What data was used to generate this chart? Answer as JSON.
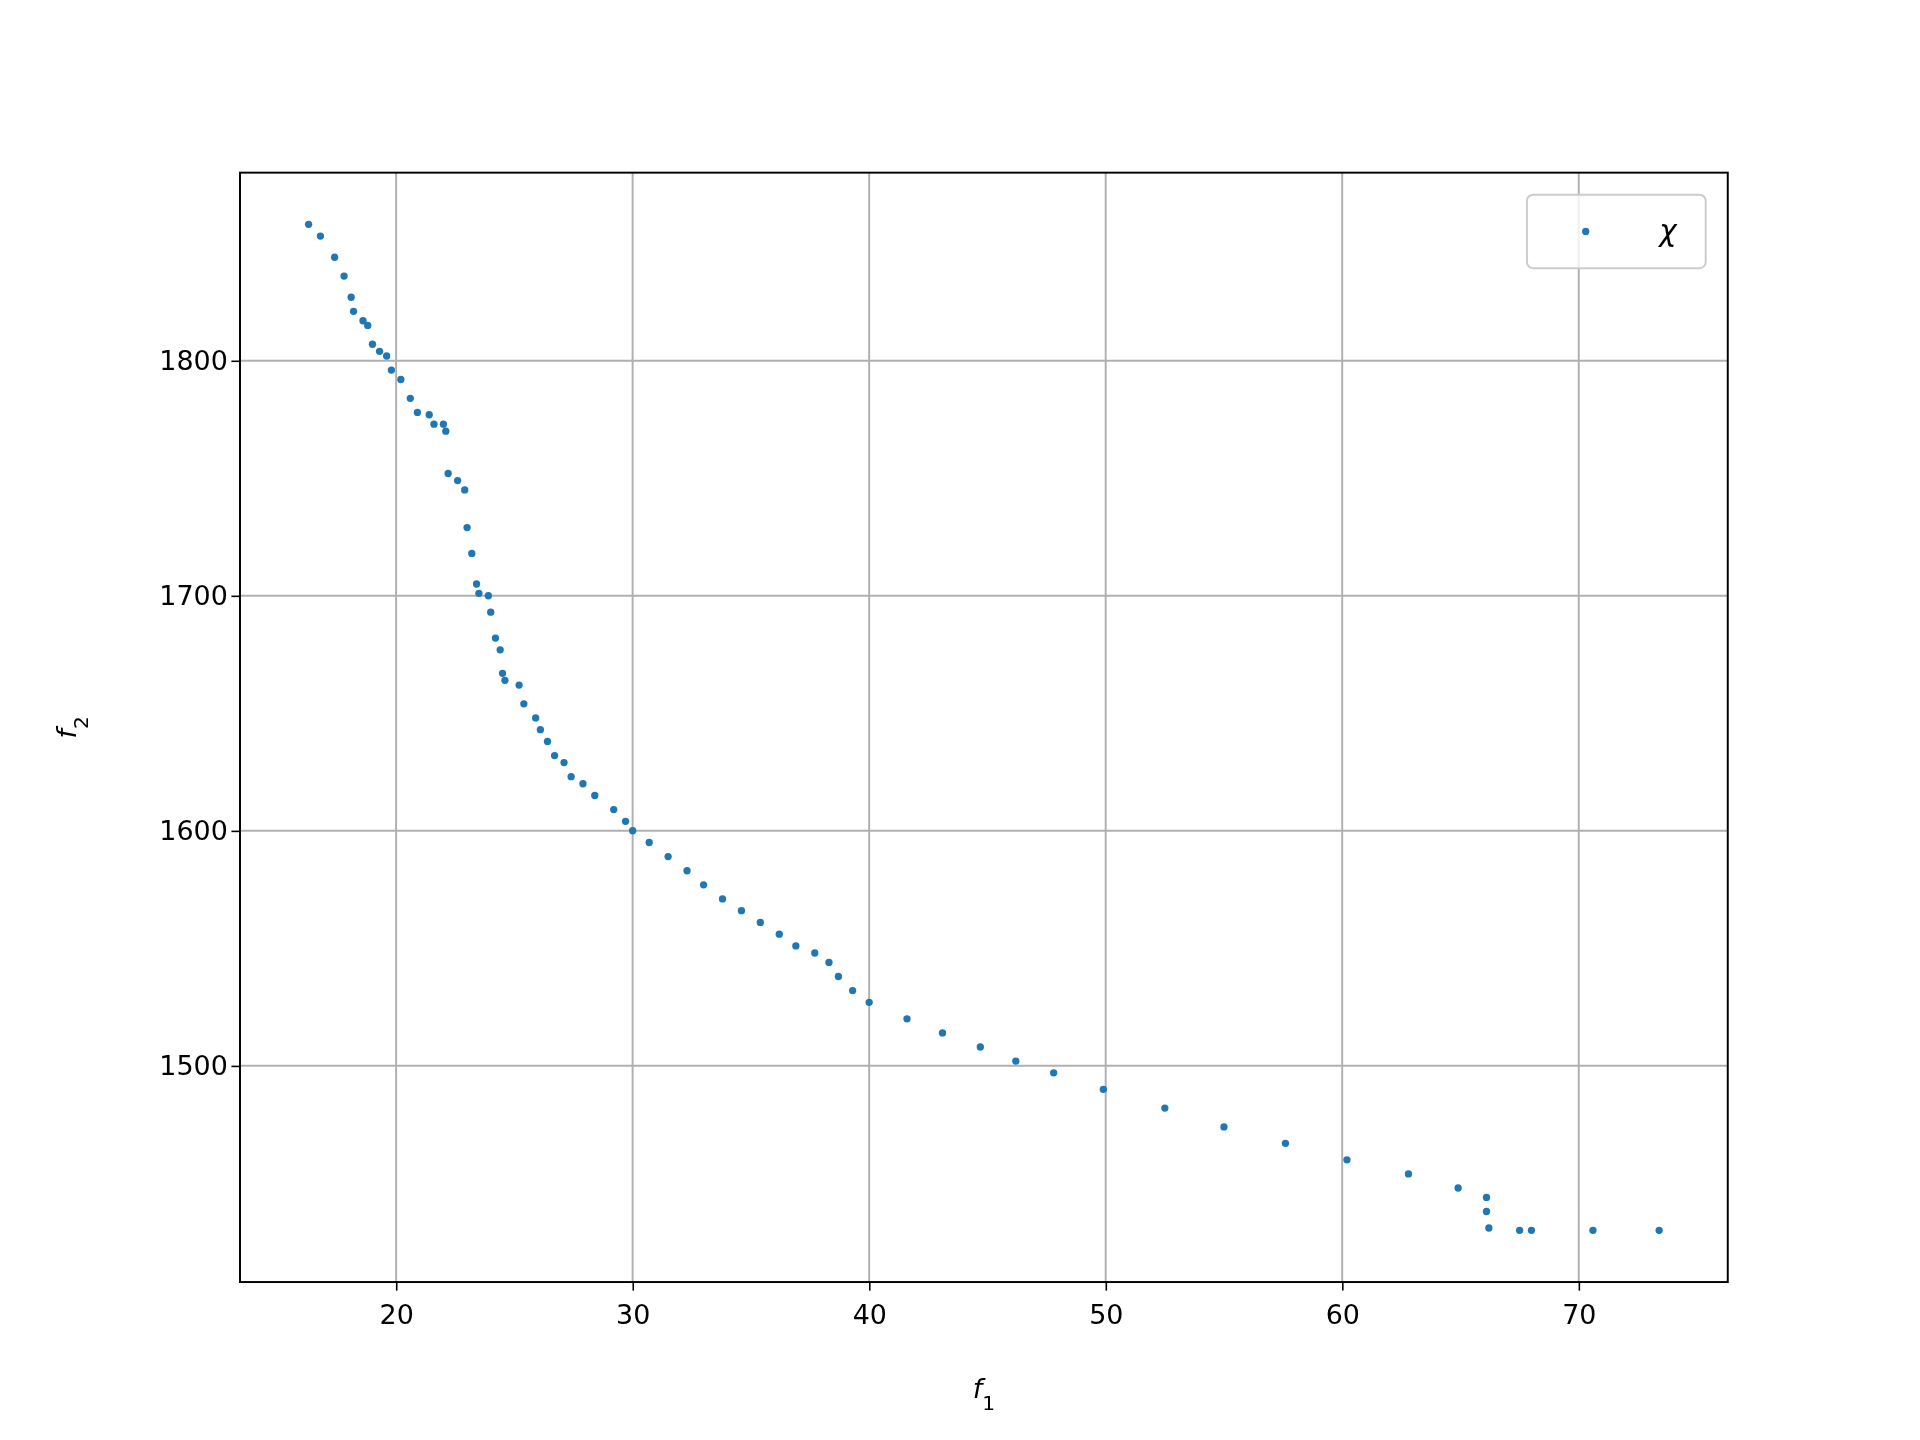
{
  "chart_data": {
    "type": "scatter",
    "xlabel": "f$_{1}$",
    "ylabel": "f$_{2}$",
    "xlim": [
      13.4,
      76.3
    ],
    "ylim": [
      1408,
      1880
    ],
    "xticks": [
      20,
      30,
      40,
      50,
      60,
      70
    ],
    "yticks": [
      1500,
      1600,
      1700,
      1800
    ],
    "grid": true,
    "legend": "top right",
    "marker": "circle",
    "series": [
      {
        "name": "χ",
        "color": "#1f77b4",
        "x": [
          16.3,
          16.8,
          17.4,
          17.8,
          18.1,
          18.2,
          18.6,
          18.8,
          19.0,
          19.3,
          19.6,
          19.8,
          20.2,
          20.6,
          20.9,
          21.4,
          21.6,
          22.0,
          22.1,
          22.2,
          22.6,
          22.9,
          23.0,
          23.2,
          23.4,
          23.5,
          23.9,
          24.0,
          24.2,
          24.4,
          24.5,
          24.6,
          25.2,
          25.4,
          25.9,
          26.1,
          26.4,
          26.7,
          27.1,
          27.4,
          27.9,
          28.4,
          29.2,
          29.7,
          30.0,
          30.7,
          31.5,
          32.3,
          33.0,
          33.8,
          34.6,
          35.4,
          36.2,
          36.9,
          37.7,
          38.3,
          38.7,
          39.3,
          40.0,
          41.6,
          43.1,
          44.7,
          46.2,
          47.8,
          49.9,
          52.5,
          55.0,
          57.6,
          60.2,
          62.8,
          64.9,
          66.1,
          66.1,
          66.2,
          67.5,
          68.0,
          70.6,
          73.4
        ],
        "values": [
          1858,
          1853,
          1844,
          1836,
          1827,
          1821,
          1817,
          1815,
          1807,
          1804,
          1802,
          1796,
          1792,
          1784,
          1778,
          1777,
          1773,
          1773,
          1770,
          1752,
          1749,
          1745,
          1729,
          1718,
          1705,
          1701,
          1700,
          1693,
          1682,
          1677,
          1667,
          1664,
          1662,
          1654,
          1648,
          1643,
          1638,
          1632,
          1629,
          1623,
          1620,
          1615,
          1609,
          1604,
          1600,
          1595,
          1589,
          1583,
          1577,
          1571,
          1566,
          1561,
          1556,
          1551,
          1548,
          1544,
          1538,
          1532,
          1527,
          1520,
          1514,
          1508,
          1502,
          1497,
          1490,
          1482,
          1474,
          1467,
          1460,
          1454,
          1448,
          1444,
          1438,
          1431,
          1430,
          1430,
          1430,
          1430
        ]
      }
    ]
  }
}
